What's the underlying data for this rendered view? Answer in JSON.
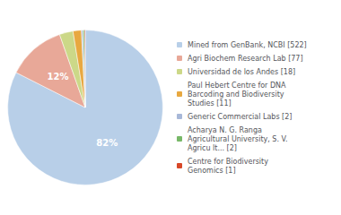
{
  "chart_data": {
    "type": "pie",
    "categories": [
      "Mined from GenBank, NCBI [522]",
      "Agri Biochem Research Lab [77]",
      "Universidad de los Andes [18]",
      "Paul Hebert Centre for DNA\nBarcoding and Biodiversity\nStudies [11]",
      "Generic Commercial Labs [2]",
      "Acharya N. G. Ranga\nAgricultural University, S. V.\nAgricu lt... [2]",
      "Centre for Biodiversity\nGenomics [1]"
    ],
    "values": [
      522,
      77,
      18,
      11,
      2,
      2,
      1
    ],
    "slice_labels": [
      "82%",
      "12%",
      null,
      null,
      null,
      null,
      null
    ],
    "colors": [
      "#b8cfe8",
      "#e8a898",
      "#ccd888",
      "#e8a840",
      "#a8b8d8",
      "#78b868",
      "#d84828"
    ],
    "legend": "right"
  }
}
